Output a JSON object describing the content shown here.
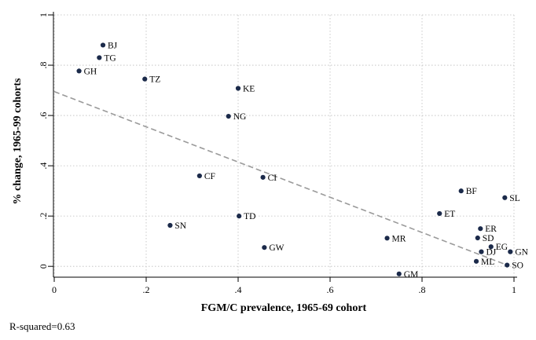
{
  "chart_data": {
    "type": "scatter",
    "xlabel": "FGM/C prevalence, 1965-69 cohort",
    "ylabel": "% change, 1965-99 cohorts",
    "xlim": [
      0,
      1
    ],
    "ylim": [
      -0.04,
      1
    ],
    "x_ticks": [
      {
        "value": 0,
        "label": "0"
      },
      {
        "value": 0.2,
        "label": ".2"
      },
      {
        "value": 0.4,
        "label": ".4"
      },
      {
        "value": 0.6,
        "label": ".6"
      },
      {
        "value": 0.8,
        "label": ".8"
      },
      {
        "value": 1,
        "label": "1"
      }
    ],
    "y_ticks": [
      {
        "value": 0,
        "label": "0"
      },
      {
        "value": 0.2,
        "label": ".2"
      },
      {
        "value": 0.4,
        "label": ".4"
      },
      {
        "value": 0.6,
        "label": ".6"
      },
      {
        "value": 0.8,
        "label": ".8"
      },
      {
        "value": 1,
        "label": "1"
      }
    ],
    "grid": "dotted",
    "marker_color": "#1b2a4a",
    "fit_line_color": "#9a9a9a",
    "points": [
      {
        "label": "BJ",
        "x": 0.106,
        "y": 0.88
      },
      {
        "label": "TG",
        "x": 0.098,
        "y": 0.83
      },
      {
        "label": "GH",
        "x": 0.054,
        "y": 0.777
      },
      {
        "label": "TZ",
        "x": 0.197,
        "y": 0.745
      },
      {
        "label": "KE",
        "x": 0.4,
        "y": 0.708
      },
      {
        "label": "NG",
        "x": 0.379,
        "y": 0.597
      },
      {
        "label": "CF",
        "x": 0.316,
        "y": 0.36
      },
      {
        "label": "CI",
        "x": 0.454,
        "y": 0.354
      },
      {
        "label": "TD",
        "x": 0.402,
        "y": 0.2
      },
      {
        "label": "SN",
        "x": 0.252,
        "y": 0.163
      },
      {
        "label": "GW",
        "x": 0.457,
        "y": 0.075
      },
      {
        "label": "MR",
        "x": 0.724,
        "y": 0.112
      },
      {
        "label": "GM",
        "x": 0.75,
        "y": -0.03
      },
      {
        "label": "ET",
        "x": 0.838,
        "y": 0.21
      },
      {
        "label": "BF",
        "x": 0.885,
        "y": 0.3
      },
      {
        "label": "SL",
        "x": 0.98,
        "y": 0.273
      },
      {
        "label": "ER",
        "x": 0.927,
        "y": 0.15
      },
      {
        "label": "SD",
        "x": 0.921,
        "y": 0.113
      },
      {
        "label": "EG",
        "x": 0.95,
        "y": 0.078
      },
      {
        "label": "DJ",
        "x": 0.929,
        "y": 0.058
      },
      {
        "label": "GN",
        "x": 0.992,
        "y": 0.058
      },
      {
        "label": "ML",
        "x": 0.918,
        "y": 0.02
      },
      {
        "label": "SO",
        "x": 0.985,
        "y": 0.005
      }
    ],
    "fit_line": {
      "x": [
        0.0,
        0.985
      ],
      "y": [
        0.695,
        0.005
      ]
    }
  },
  "note": "R-squared=0.63"
}
